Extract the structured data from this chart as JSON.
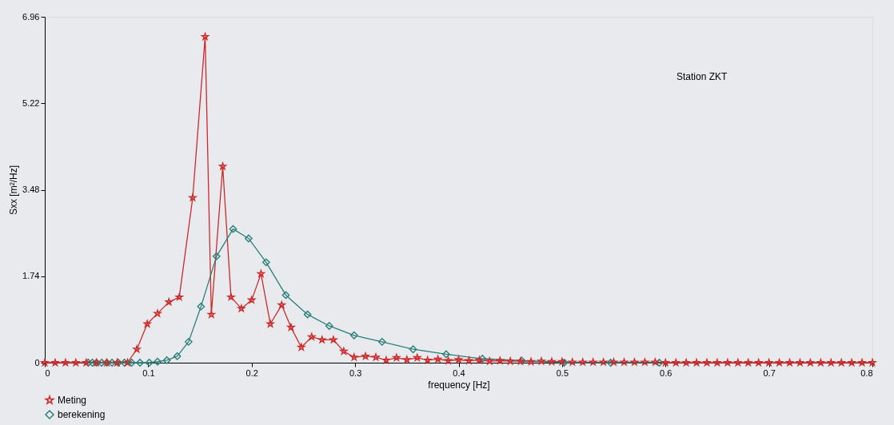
{
  "chart_data": {
    "type": "line",
    "xlabel": "frequency [Hz]",
    "ylabel": "Sxx [m²/Hz]",
    "annotations": [
      "Station ZKT"
    ],
    "xlim": [
      0,
      0.8
    ],
    "xticks": [
      0,
      0.1,
      0.2,
      0.3,
      0.4,
      0.5,
      0.6,
      0.7,
      0.8
    ],
    "ylim": [
      0,
      6.96
    ],
    "yticks": [
      0,
      1.74,
      3.48,
      5.22,
      6.96
    ],
    "grid": false,
    "legend": "bottom",
    "line_style": "solid",
    "series": [
      {
        "name": "Meting",
        "color": "#cc2a2a",
        "marker": "star",
        "x": [
          0,
          0.01,
          0.02,
          0.03,
          0.04,
          0.05,
          0.06,
          0.07,
          0.08,
          0.089,
          0.099,
          0.109,
          0.12,
          0.13,
          0.143,
          0.155,
          0.161,
          0.172,
          0.18,
          0.19,
          0.2,
          0.209,
          0.218,
          0.229,
          0.238,
          0.248,
          0.258,
          0.268,
          0.279,
          0.289,
          0.299,
          0.31,
          0.32,
          0.33,
          0.34,
          0.35,
          0.36,
          0.37,
          0.38,
          0.39,
          0.4,
          0.41,
          0.42,
          0.43,
          0.44,
          0.45,
          0.46,
          0.47,
          0.48,
          0.49,
          0.5,
          0.51,
          0.52,
          0.53,
          0.54,
          0.55,
          0.56,
          0.57,
          0.58,
          0.59,
          0.6,
          0.61,
          0.62,
          0.63,
          0.64,
          0.65,
          0.66,
          0.67,
          0.68,
          0.69,
          0.7,
          0.71,
          0.72,
          0.73,
          0.74,
          0.75,
          0.76,
          0.77,
          0.78,
          0.79,
          0.8
        ],
        "values": [
          0,
          0,
          0,
          0,
          0,
          0,
          0,
          0,
          0,
          0.27,
          0.78,
          0.99,
          1.22,
          1.32,
          3.32,
          6.56,
          0.97,
          3.95,
          1.32,
          1.09,
          1.26,
          1.79,
          0.78,
          1.16,
          0.71,
          0.31,
          0.52,
          0.46,
          0.46,
          0.23,
          0.11,
          0.13,
          0.11,
          0.05,
          0.1,
          0.06,
          0.1,
          0.05,
          0.07,
          0.04,
          0.06,
          0.04,
          0.05,
          0.03,
          0.04,
          0.03,
          0.03,
          0.02,
          0.03,
          0.02,
          0.02,
          0.01,
          0.01,
          0.01,
          0.01,
          0.01,
          0.01,
          0.01,
          0.01,
          0.01,
          0,
          0,
          0,
          0,
          0,
          0,
          0,
          0,
          0,
          0,
          0,
          0,
          0,
          0,
          0,
          0,
          0,
          0,
          0,
          0,
          0
        ]
      },
      {
        "name": "berekening",
        "color": "#2a7f7a",
        "marker": "diamond",
        "x": [
          0.042,
          0.046,
          0.05,
          0.055,
          0.06,
          0.065,
          0.071,
          0.077,
          0.084,
          0.092,
          0.101,
          0.109,
          0.118,
          0.128,
          0.139,
          0.151,
          0.166,
          0.182,
          0.197,
          0.214,
          0.233,
          0.254,
          0.275,
          0.299,
          0.326,
          0.356,
          0.388,
          0.423,
          0.461,
          0.502,
          0.547,
          0.594
        ],
        "values": [
          0,
          0,
          0,
          0,
          0,
          0,
          0,
          0,
          0,
          0,
          0,
          0.02,
          0.05,
          0.13,
          0.42,
          1.13,
          2.14,
          2.69,
          2.5,
          2.02,
          1.36,
          0.97,
          0.74,
          0.55,
          0.42,
          0.27,
          0.17,
          0.08,
          0.04,
          0,
          0,
          0
        ]
      }
    ]
  }
}
